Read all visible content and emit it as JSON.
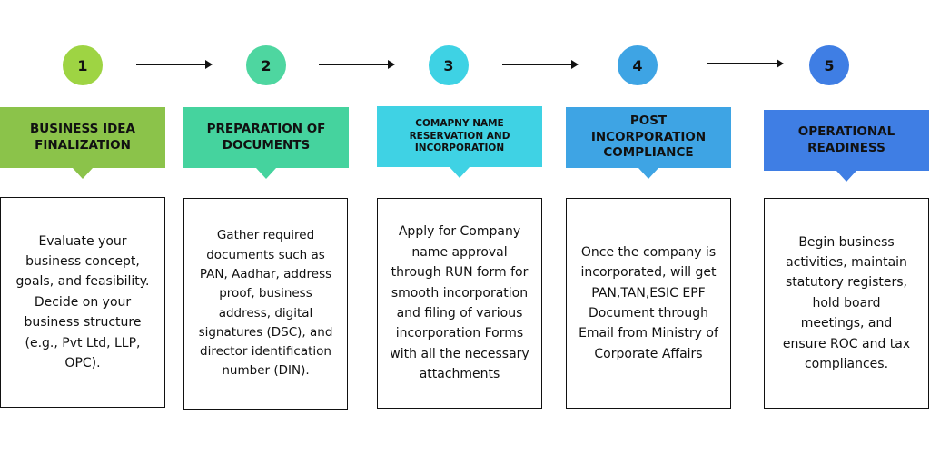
{
  "steps": [
    {
      "number": "1",
      "title": "BUSINESS IDEA FINALIZATION",
      "description": "Evaluate your business concept, goals, and feasibility. Decide on your business structure (e.g., Pvt Ltd, LLP, OPC).",
      "circle_color": "#9ed443",
      "banner_color": "#8bc34a"
    },
    {
      "number": "2",
      "title": "PREPARATION OF DOCUMENTS",
      "description": "Gather required documents such as PAN, Aadhar, address proof, business address, digital signatures (DSC), and director identification number (DIN).",
      "circle_color": "#4ed6a0",
      "banner_color": "#45d39e"
    },
    {
      "number": "3",
      "title": "COMAPNY NAME RESERVATION AND INCORPORATION",
      "description": "Apply for Company name approval through RUN form for smooth incorporation and filing of various incorporation Forms with all the necessary attachments",
      "circle_color": "#3ed2e4",
      "banner_color": "#3fd2e4"
    },
    {
      "number": "4",
      "title": "POST INCORPORATION COMPLIANCE",
      "description": "Once the company is incorporated, will get PAN,TAN,ESIC EPF Document through Email from Ministry of Corporate Affairs",
      "circle_color": "#3ea4e4",
      "banner_color": "#3ea4e4"
    },
    {
      "number": "5",
      "title": "OPERATIONAL READINESS",
      "description": "Begin business activities, maintain statutory registers, hold board meetings, and ensure ROC and tax compliances.",
      "circle_color": "#3f7ee4",
      "banner_color": "#3f7ee4"
    }
  ]
}
